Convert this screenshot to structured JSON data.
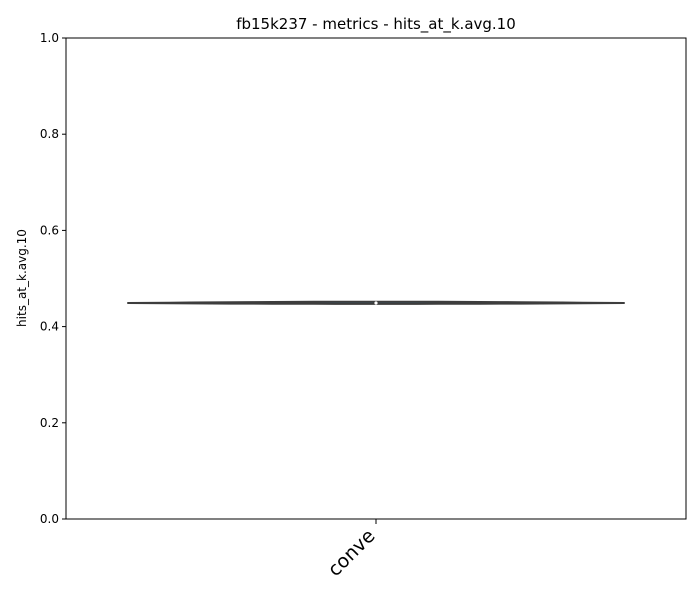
{
  "chart_data": {
    "type": "violin",
    "title": "fb15k237 - metrics - hits_at_k.avg.10",
    "xlabel": "",
    "ylabel": "hits_at_k.avg.10",
    "categories": [
      "conve"
    ],
    "ylim": [
      0.0,
      1.0
    ],
    "yticks": [
      0.0,
      0.2,
      0.4,
      0.6,
      0.8,
      1.0
    ],
    "ytick_labels": [
      "0.0",
      "0.2",
      "0.4",
      "0.6",
      "0.8",
      "1.0"
    ],
    "series": [
      {
        "values": [
          0.447,
          0.449,
          0.45,
          0.451,
          0.452
        ],
        "median": 0.449,
        "q1": 0.448,
        "q3": 0.451,
        "min": 0.447,
        "max": 0.452
      }
    ],
    "grid": false,
    "colors": {
      "violin_fill": "#3274a1",
      "violin_edge": "#3d3d3d",
      "median_dot": "#ffffff"
    }
  }
}
